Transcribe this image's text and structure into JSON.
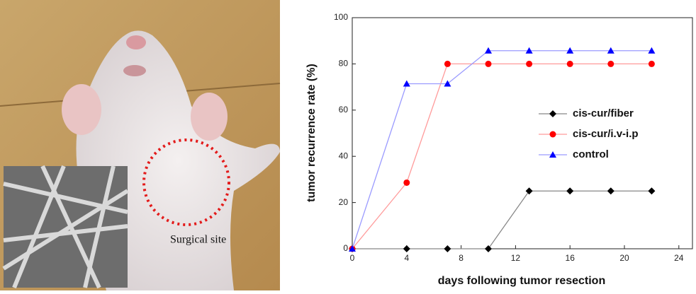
{
  "photo": {
    "label": "Surgical site"
  },
  "chart_data": {
    "type": "line",
    "x_label": "days following tumor resection",
    "y_label": "tumor recurrence rate (%)",
    "x": [
      0,
      4,
      7,
      10,
      13,
      16,
      19,
      22
    ],
    "series": [
      {
        "name": "cis-cur/fiber",
        "color": "#000000",
        "line_color": "#888888",
        "marker": "diamond",
        "values": [
          0,
          0,
          0,
          0,
          25,
          25,
          25,
          25
        ]
      },
      {
        "name": "cis-cur/i.v-i.p",
        "color": "#ff0000",
        "line_color": "#ff9a9a",
        "marker": "circle",
        "values": [
          0,
          28.6,
          80,
          80,
          80,
          80,
          80,
          80
        ]
      },
      {
        "name": "control",
        "color": "#0000ff",
        "line_color": "#9a9aff",
        "marker": "triangle",
        "values": [
          0,
          71.4,
          71.4,
          85.7,
          85.7,
          85.7,
          85.7,
          85.7
        ]
      }
    ],
    "xlim": [
      0,
      25
    ],
    "xticks": [
      0,
      4,
      8,
      12,
      16,
      20,
      24
    ],
    "ylim": [
      0,
      100
    ],
    "yticks": [
      0,
      20,
      40,
      60,
      80,
      100
    ],
    "grid": false
  }
}
